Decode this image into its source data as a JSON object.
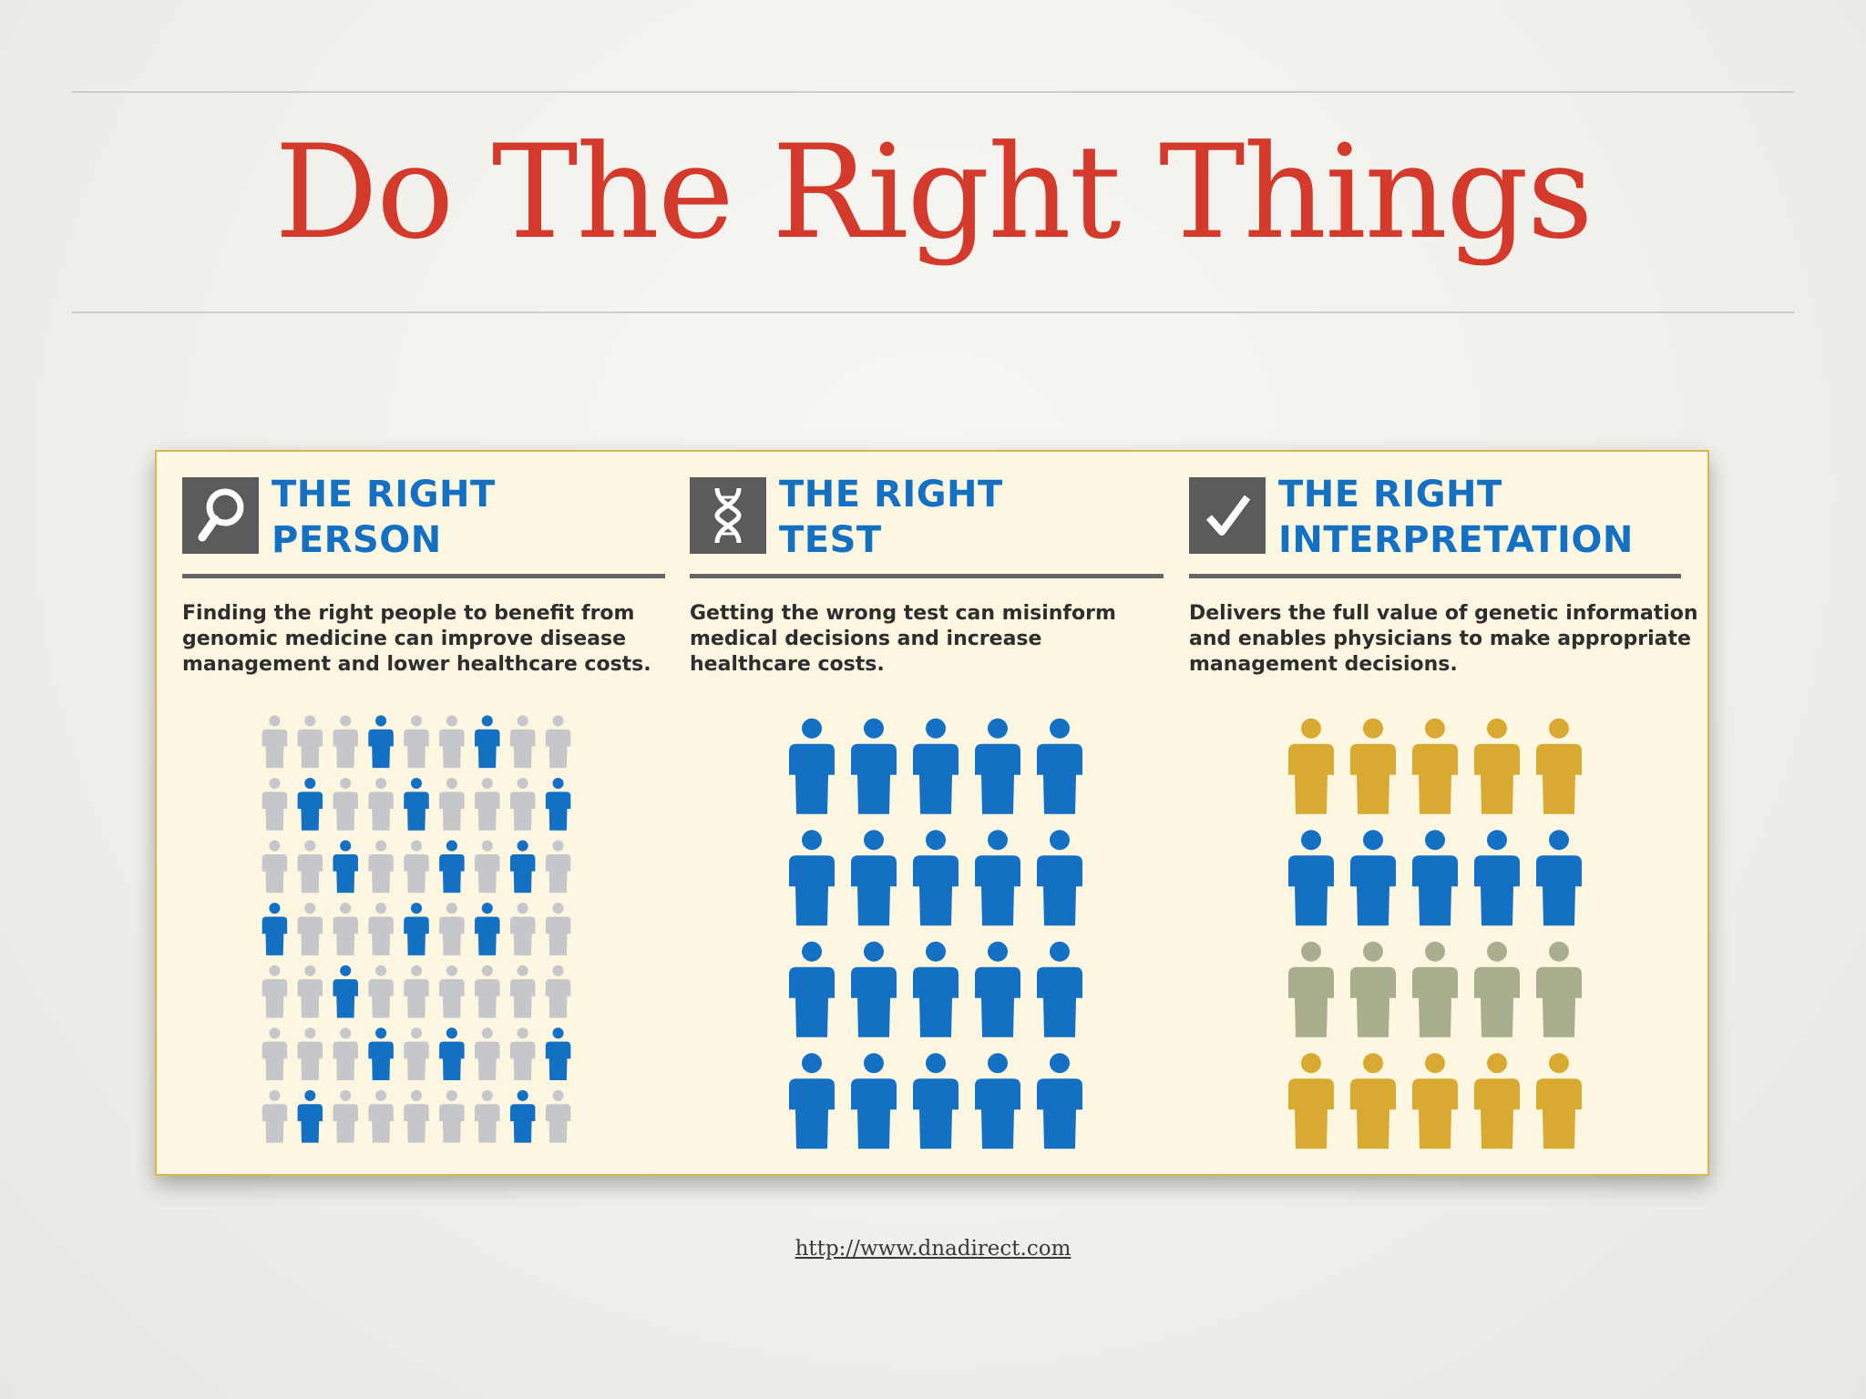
{
  "slide": {
    "title": "Do The Right Things",
    "source_link": "http://www.dnadirect.com"
  },
  "panels": [
    {
      "icon": "magnifier-icon",
      "heading_lines": [
        "THE RIGHT",
        "PERSON"
      ],
      "description_lines": [
        "Finding the right people to benefit from",
        "genomic medicine can improve disease",
        "management and lower healthcare costs."
      ],
      "figure_grid": {
        "columns": 9,
        "rows": [
          [
            "gray",
            "gray",
            "gray",
            "blue",
            "gray",
            "gray",
            "blue",
            "gray",
            "gray"
          ],
          [
            "gray",
            "blue",
            "gray",
            "gray",
            "blue",
            "gray",
            "gray",
            "gray",
            "blue"
          ],
          [
            "gray",
            "gray",
            "blue",
            "gray",
            "gray",
            "blue",
            "gray",
            "blue",
            "gray"
          ],
          [
            "blue",
            "gray",
            "gray",
            "gray",
            "blue",
            "gray",
            "blue",
            "gray",
            "gray"
          ],
          [
            "gray",
            "gray",
            "blue",
            "gray",
            "gray",
            "gray",
            "gray",
            "gray",
            "gray"
          ],
          [
            "gray",
            "gray",
            "gray",
            "blue",
            "gray",
            "blue",
            "gray",
            "gray",
            "blue"
          ],
          [
            "gray",
            "blue",
            "gray",
            "gray",
            "gray",
            "gray",
            "gray",
            "blue",
            "gray"
          ]
        ]
      }
    },
    {
      "icon": "dna-icon",
      "heading_lines": [
        "THE RIGHT",
        "TEST"
      ],
      "description_lines": [
        "Getting the wrong test can misinform",
        "medical decisions and increase",
        "healthcare costs."
      ],
      "figure_grid": {
        "columns": 5,
        "rows": [
          [
            "blue",
            "blue",
            "blue",
            "blue",
            "blue"
          ],
          [
            "blue",
            "blue",
            "blue",
            "blue",
            "blue"
          ],
          [
            "blue",
            "blue",
            "blue",
            "blue",
            "blue"
          ],
          [
            "blue",
            "blue",
            "blue",
            "blue",
            "blue"
          ]
        ]
      }
    },
    {
      "icon": "checkmark-icon",
      "heading_lines": [
        "THE RIGHT",
        "INTERPRETATION"
      ],
      "description_lines": [
        "Delivers the full value of genetic information",
        "and enables physicians to make appropriate",
        "management decisions."
      ],
      "figure_grid": {
        "columns": 5,
        "rows": [
          [
            "gold",
            "gold",
            "gold",
            "gold",
            "gold"
          ],
          [
            "blue",
            "blue",
            "blue",
            "blue",
            "blue"
          ],
          [
            "sage",
            "sage",
            "sage",
            "sage",
            "sage"
          ],
          [
            "gold",
            "gold",
            "gold",
            "gold",
            "gold"
          ]
        ]
      }
    }
  ],
  "colors": {
    "title_red": "#d33a2c",
    "heading_blue": "#1370c2",
    "panel_background": "#fdf7e2",
    "panel_border": "#d9b750",
    "figure": {
      "blue": "#1370c2",
      "gray": "#c6c7cb",
      "gold": "#d8aa31",
      "sage": "#a9ae8f"
    }
  }
}
